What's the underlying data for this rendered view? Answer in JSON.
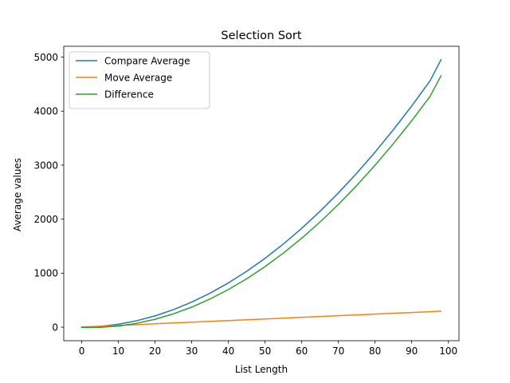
{
  "chart_data": {
    "type": "line",
    "title": "Selection Sort",
    "xlabel": "List Length",
    "ylabel": "Average values",
    "xlim": [
      -4.9,
      102.9
    ],
    "ylim": [
      -250,
      5200
    ],
    "xticks": [
      0,
      10,
      20,
      30,
      40,
      50,
      60,
      70,
      80,
      90,
      100
    ],
    "yticks": [
      0,
      1000,
      2000,
      3000,
      4000,
      5000
    ],
    "grid": false,
    "legend_position": "top-left",
    "x": [
      0,
      5,
      10,
      15,
      20,
      25,
      30,
      35,
      40,
      45,
      50,
      55,
      60,
      65,
      70,
      75,
      80,
      85,
      90,
      95,
      98
    ],
    "series": [
      {
        "name": "Compare Average",
        "color": "#1f77b4",
        "values": [
          0,
          15,
          55,
          120,
          210,
          325,
          465,
          630,
          820,
          1035,
          1275,
          1540,
          1830,
          2145,
          2485,
          2850,
          3240,
          3655,
          4095,
          4560,
          4951
        ]
      },
      {
        "name": "Move Average",
        "color": "#ff7f0e",
        "values": [
          3,
          18,
          33,
          48,
          63,
          78,
          93,
          108,
          123,
          138,
          153,
          168,
          183,
          198,
          213,
          228,
          243,
          258,
          273,
          288,
          297
        ]
      },
      {
        "name": "Difference",
        "color": "#2ca02c",
        "values": [
          -3,
          -3,
          22,
          72,
          147,
          247,
          372,
          522,
          697,
          897,
          1122,
          1372,
          1647,
          1947,
          2272,
          2622,
          2997,
          3397,
          3822,
          4272,
          4654
        ]
      }
    ]
  }
}
